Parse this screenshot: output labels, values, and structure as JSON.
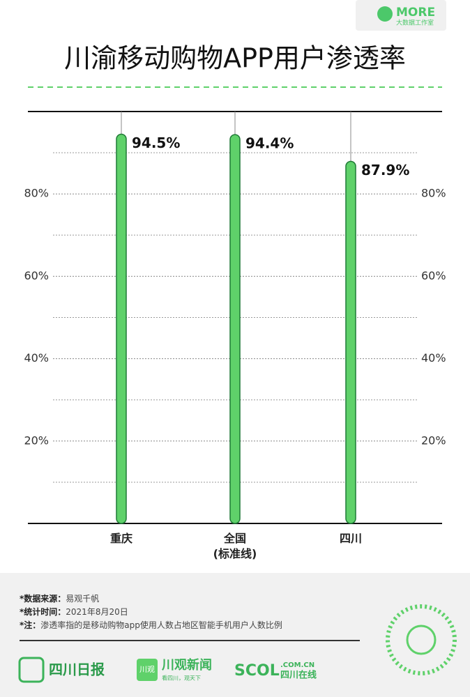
{
  "logo": {
    "name": "MORE",
    "subtitle": "大数据工作室"
  },
  "chart_data": {
    "type": "bar",
    "title": "川渝移动购物APP用户渗透率",
    "categories": [
      "重庆",
      "全国\n(标准线)",
      "四川"
    ],
    "values": [
      94.5,
      94.4,
      87.9
    ],
    "value_labels": [
      "94.5%",
      "94.4%",
      "87.9%"
    ],
    "color": "#5fd16a",
    "ylim": [
      0,
      100
    ],
    "yticks": [
      {
        "value": 20,
        "label": "20%"
      },
      {
        "value": 40,
        "label": "40%"
      },
      {
        "value": 60,
        "label": "60%"
      },
      {
        "value": 80,
        "label": "80%"
      }
    ],
    "minor_gridlines": [
      10,
      30,
      50,
      70,
      90
    ],
    "grid": true
  },
  "footer": {
    "notes": [
      {
        "label": "*数据来源：",
        "text": "易观千帆"
      },
      {
        "label": "*统计时间：",
        "text": "2021年8月20日"
      },
      {
        "label": "*注：",
        "text": "渗透率指的是移动购物app使用人数占地区智能手机用户人数比例"
      }
    ],
    "logos": {
      "sichuan_daily": "四川日报",
      "chuanguan_icon": "川观",
      "chuanguan": "川观新闻",
      "chuanguan_slogan": "看四川，观天下",
      "scol": "SCOL",
      "scol_domain": ".COM.CN",
      "scol_name": "四川在线"
    }
  }
}
